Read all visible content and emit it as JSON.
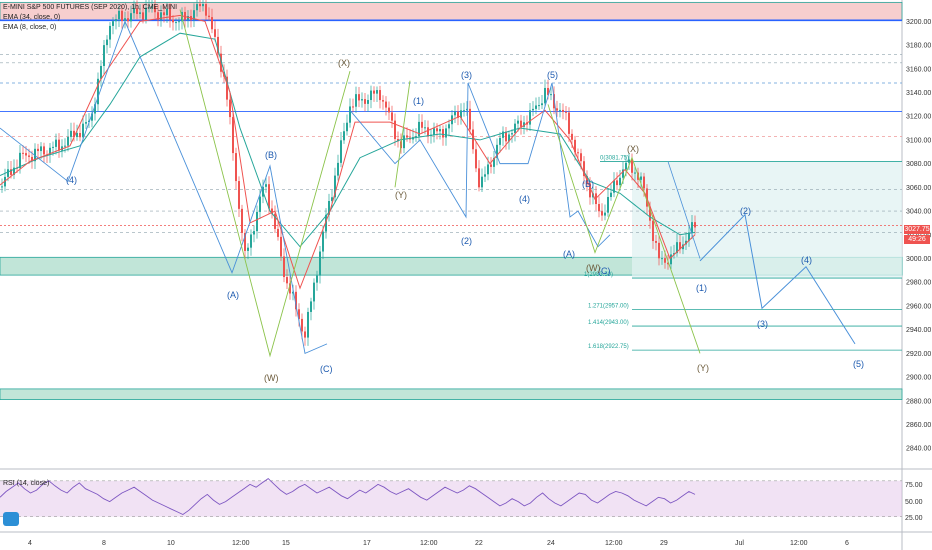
{
  "header": {
    "symbol": "E-MINI S&P 500 FUTURES (SEP 2020), 1h, CME_MINI",
    "ema1": "EMA (34, close, 0)",
    "ema2": "EMA (8, close, 0)"
  },
  "rsi": {
    "title": "RSI (14, close)",
    "ticks": [
      "75.00",
      "50.00",
      "25.00"
    ],
    "levels": [
      75,
      50,
      25
    ],
    "series": [
      52,
      60,
      66,
      72,
      64,
      58,
      62,
      70,
      75,
      68,
      62,
      58,
      66,
      72,
      64,
      60,
      56,
      50,
      46,
      52,
      58,
      62,
      66,
      60,
      54,
      48,
      44,
      40,
      36,
      32,
      28,
      34,
      42,
      50,
      56,
      48,
      42,
      46,
      52,
      58,
      64,
      70,
      66,
      72,
      78,
      70,
      62,
      56,
      60,
      66,
      70,
      64,
      58,
      62,
      66,
      60,
      54,
      50,
      56,
      62,
      58,
      64,
      70,
      66,
      60,
      56,
      60,
      64,
      58,
      52,
      48,
      54,
      60,
      66,
      62,
      58,
      62,
      68,
      64,
      58,
      52,
      46,
      40,
      44,
      50,
      46,
      40,
      44,
      52,
      58,
      50,
      44,
      40,
      46,
      52,
      58,
      56,
      48,
      44,
      50,
      56,
      60,
      58,
      54,
      48,
      44,
      40,
      46,
      52,
      50,
      44,
      48,
      54,
      60,
      56
    ]
  },
  "price_axis": {
    "ticks": [
      "3200.00",
      "3180.00",
      "3160.00",
      "3140.00",
      "3120.00",
      "3100.00",
      "3080.00",
      "3060.00",
      "3040.00",
      "3020.00",
      "3000.00",
      "2980.00",
      "2960.00",
      "2940.00",
      "2920.00",
      "2900.00",
      "2880.00",
      "2860.00",
      "2840.00"
    ],
    "last_price": "3027.75",
    "countdown": "49:26"
  },
  "time_axis": {
    "ticks": [
      "4",
      "8",
      "10",
      "12:00",
      "15",
      "17",
      "12:00",
      "22",
      "24",
      "12:00",
      "29",
      "Jul",
      "12:00",
      "6"
    ]
  },
  "chart_data": {
    "type": "line",
    "title": "E-MINI S&P 500 FUTURES (SEP 2020), 1h, CME_MINI",
    "ylim": [
      2825,
      3218
    ],
    "price_path": [
      [
        0,
        3060
      ],
      [
        20,
        3085
      ],
      [
        60,
        3095
      ],
      [
        90,
        3115
      ],
      [
        110,
        3200
      ],
      [
        150,
        3210
      ],
      [
        180,
        3200
      ],
      [
        205,
        3215
      ],
      [
        225,
        3150
      ],
      [
        245,
        3000
      ],
      [
        265,
        3065
      ],
      [
        285,
        2985
      ],
      [
        305,
        2935
      ],
      [
        325,
        3030
      ],
      [
        350,
        3130
      ],
      [
        380,
        3140
      ],
      [
        400,
        3095
      ],
      [
        420,
        3110
      ],
      [
        440,
        3105
      ],
      [
        465,
        3130
      ],
      [
        480,
        3060
      ],
      [
        500,
        3100
      ],
      [
        530,
        3120
      ],
      [
        545,
        3140
      ],
      [
        565,
        3120
      ],
      [
        580,
        3080
      ],
      [
        600,
        3035
      ],
      [
        625,
        3080
      ],
      [
        640,
        3070
      ],
      [
        660,
        2995
      ],
      [
        675,
        3005
      ],
      [
        695,
        3028
      ]
    ],
    "ema34": [
      [
        0,
        3070
      ],
      [
        40,
        3085
      ],
      [
        80,
        3095
      ],
      [
        110,
        3130
      ],
      [
        140,
        3170
      ],
      [
        180,
        3190
      ],
      [
        215,
        3185
      ],
      [
        240,
        3110
      ],
      [
        270,
        3040
      ],
      [
        300,
        3010
      ],
      [
        330,
        3040
      ],
      [
        360,
        3085
      ],
      [
        400,
        3100
      ],
      [
        440,
        3105
      ],
      [
        480,
        3100
      ],
      [
        520,
        3110
      ],
      [
        560,
        3105
      ],
      [
        590,
        3065
      ],
      [
        620,
        3055
      ],
      [
        650,
        3035
      ],
      [
        680,
        3020
      ],
      [
        695,
        3022
      ]
    ],
    "ema8": [
      [
        0,
        3062
      ],
      [
        30,
        3082
      ],
      [
        70,
        3095
      ],
      [
        100,
        3150
      ],
      [
        140,
        3200
      ],
      [
        180,
        3205
      ],
      [
        205,
        3200
      ],
      [
        230,
        3140
      ],
      [
        250,
        3030
      ],
      [
        275,
        3040
      ],
      [
        300,
        2975
      ],
      [
        330,
        3040
      ],
      [
        355,
        3115
      ],
      [
        390,
        3115
      ],
      [
        420,
        3105
      ],
      [
        460,
        3120
      ],
      [
        490,
        3080
      ],
      [
        520,
        3110
      ],
      [
        545,
        3125
      ],
      [
        570,
        3100
      ],
      [
        595,
        3050
      ],
      [
        625,
        3075
      ],
      [
        645,
        3055
      ],
      [
        670,
        3000
      ],
      [
        695,
        3020
      ]
    ],
    "horizontal_levels": [
      3200.5,
      3148,
      3124,
      3103,
      3081.75,
      3027.75,
      2983.5,
      2957,
      2943,
      2922.75
    ],
    "zones": [
      {
        "top": 3216,
        "bottom": 3201,
        "color": "#f5c2c2"
      },
      {
        "top": 3001,
        "bottom": 2986,
        "color": "#b2dfce"
      },
      {
        "top": 2890,
        "bottom": 2881,
        "color": "#b2dfce"
      }
    ],
    "fib_levels": [
      {
        "label": "0(3081.75)",
        "price": 3081.75
      },
      {
        "label": "1(2983.50)",
        "price": 2983.5
      },
      {
        "label": "1.271(2957.00)",
        "price": 2957
      },
      {
        "label": "1.414(2943.00)",
        "price": 2943
      },
      {
        "label": "1.618(2922.75)",
        "price": 2922.75
      }
    ],
    "wave_labels_blue": [
      "(4)",
      "(B)",
      "(A)",
      "(C)",
      "(1)",
      "(3)",
      "(2)",
      "(4)",
      "(5)",
      "(B)",
      "(A)",
      "(C)",
      "(1)",
      "(2)",
      "(3)",
      "(4)",
      "(5)"
    ],
    "wave_labels_gray": [
      "(X)",
      "(W)",
      "(Y)",
      "(W)",
      "(X)",
      "(Y)"
    ],
    "projection_path": [
      [
        700,
        2998
      ],
      [
        745,
        3037
      ],
      [
        762,
        2958
      ],
      [
        806,
        2993
      ],
      [
        855,
        2928
      ]
    ],
    "blue_zigzag": [
      [
        0,
        3110
      ],
      [
        68,
        3065
      ],
      [
        125,
        3200
      ],
      [
        232,
        2988
      ],
      [
        270,
        3078
      ],
      [
        305,
        2920
      ],
      [
        327,
        2928
      ]
    ],
    "blue_zigzag2": [
      [
        350,
        3125
      ],
      [
        395,
        3080
      ],
      [
        420,
        3100
      ],
      [
        466,
        3035
      ],
      [
        468,
        3148
      ],
      [
        500,
        3080
      ],
      [
        528,
        3080
      ],
      [
        552,
        3148
      ],
      [
        570,
        3035
      ],
      [
        578,
        3040
      ],
      [
        598,
        3010
      ],
      [
        610,
        3020
      ]
    ],
    "gray_zigzag": [
      [
        180,
        3210
      ],
      [
        270,
        2918
      ],
      [
        350,
        3158
      ]
    ],
    "gray_zigzag2": [
      [
        395,
        3060
      ],
      [
        410,
        3150
      ]
    ],
    "gray_zigzag3": [
      [
        548,
        3130
      ],
      [
        595,
        3005
      ],
      [
        632,
        3085
      ],
      [
        700,
        2920
      ]
    ]
  }
}
